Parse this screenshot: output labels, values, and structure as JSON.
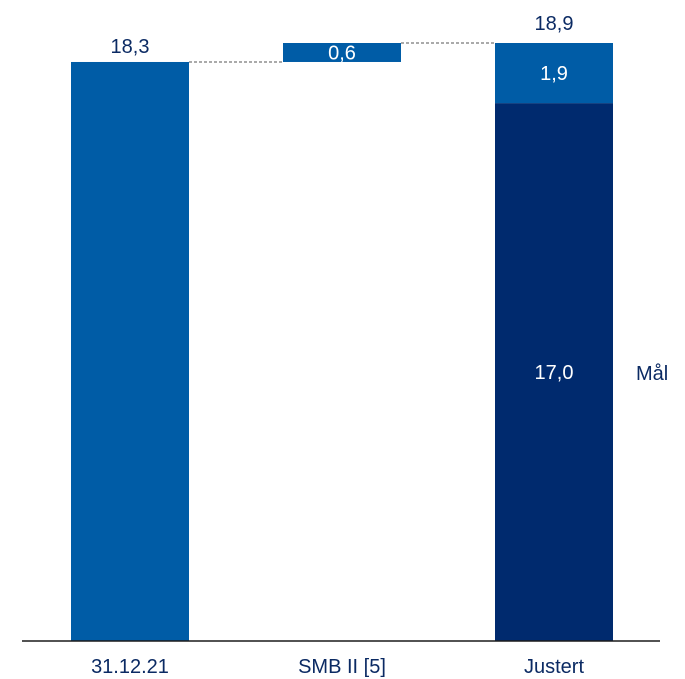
{
  "chart_data": {
    "type": "bar",
    "subtype": "waterfall",
    "categories": [
      "31.12.21",
      "SMB II [5]",
      "Justert"
    ],
    "bars": [
      {
        "category": "31.12.21",
        "kind": "total",
        "start": 0,
        "end": 18.3,
        "label": "18,3",
        "color": "#005ca6"
      },
      {
        "category": "SMB II [5]",
        "kind": "delta",
        "start": 18.3,
        "end": 18.9,
        "label": "0,6",
        "color": "#005ca6"
      },
      {
        "category": "Justert",
        "kind": "stacked",
        "total_label": "18,9",
        "segments": [
          {
            "start": 0,
            "end": 17.0,
            "label": "17,0",
            "color": "#002a6e"
          },
          {
            "start": 17.0,
            "end": 18.9,
            "label": "1,9",
            "color": "#005ca6"
          }
        ]
      }
    ],
    "annotation": "Mål",
    "ylim": [
      0,
      18.9
    ],
    "grid": false,
    "legend": "none",
    "colors": {
      "axis": "#1a1a1a",
      "connector": "#555555",
      "text": "#0b2a63"
    }
  }
}
